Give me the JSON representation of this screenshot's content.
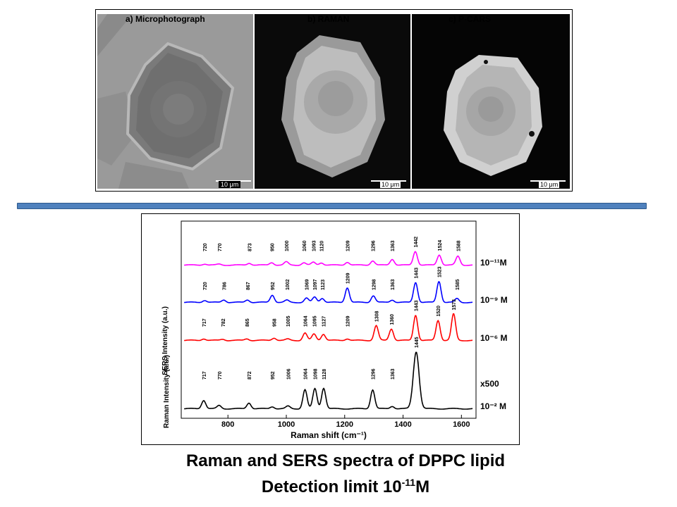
{
  "panels": [
    {
      "title": "a) Microphotograph",
      "scale": "10 μm"
    },
    {
      "title": "b) RAMAN",
      "scale": "10 μm"
    },
    {
      "title": "c) P-CARS",
      "scale": "10 μm"
    }
  ],
  "caption": {
    "line1": "Raman and SERS spectra of DPPC lipid",
    "line2_prefix": "Detection limit 10",
    "line2_exp": "-11",
    "line2_suffix": "M"
  },
  "colors": {
    "divider": "#4f81bd",
    "magenta": "#ff00ff",
    "blue": "#0000ff",
    "red": "#ff0000",
    "black": "#000000"
  },
  "chart_data": {
    "type": "line",
    "xlabel": "Raman shift (cm⁻¹)",
    "ylabel_sers": "SERS Intensity (a.u.)",
    "ylabel_raman": "Raman Intensity (a.u.)",
    "xlim": [
      640,
      1650
    ],
    "xticks": [
      800,
      1000,
      1200,
      1400,
      1600
    ],
    "series": [
      {
        "name": "10⁻¹¹M",
        "color": "#ff00ff",
        "peaks": [
          720,
          770,
          873,
          950,
          1000,
          1060,
          1093,
          1120,
          1209,
          1296,
          1363,
          1442,
          1524,
          1588
        ],
        "heights": [
          0.06,
          0.05,
          0.1,
          0.13,
          0.16,
          0.12,
          0.14,
          0.12,
          0.15,
          0.22,
          0.3,
          0.7,
          0.52,
          0.45
        ]
      },
      {
        "name": "10⁻⁹ M",
        "color": "#0000ff",
        "peaks": [
          720,
          786,
          867,
          952,
          1002,
          1069,
          1097,
          1123,
          1209,
          1298,
          1363,
          1443,
          1523,
          1585
        ],
        "heights": [
          0.1,
          0.12,
          0.12,
          0.35,
          0.1,
          0.2,
          0.25,
          0.2,
          0.7,
          0.32,
          0.12,
          0.95,
          1.0,
          0.18
        ]
      },
      {
        "name": "10⁻⁶ M",
        "color": "#ff0000",
        "peaks": [
          717,
          782,
          865,
          958,
          1005,
          1064,
          1095,
          1127,
          1209,
          1308,
          1360,
          1443,
          1520,
          1573
        ],
        "heights": [
          0.08,
          0.06,
          0.08,
          0.12,
          0.06,
          0.35,
          0.3,
          0.3,
          0.08,
          0.7,
          0.55,
          1.2,
          0.95,
          1.25
        ]
      },
      {
        "name": "10⁻² M",
        "color": "#000000",
        "annotation": "x500",
        "peaks": [
          717,
          770,
          872,
          952,
          1006,
          1064,
          1098,
          1128,
          1296,
          1363,
          1445
        ],
        "heights": [
          0.4,
          0.15,
          0.28,
          0.1,
          0.12,
          0.9,
          0.95,
          0.98,
          0.9,
          0.12,
          2.7
        ]
      }
    ]
  }
}
